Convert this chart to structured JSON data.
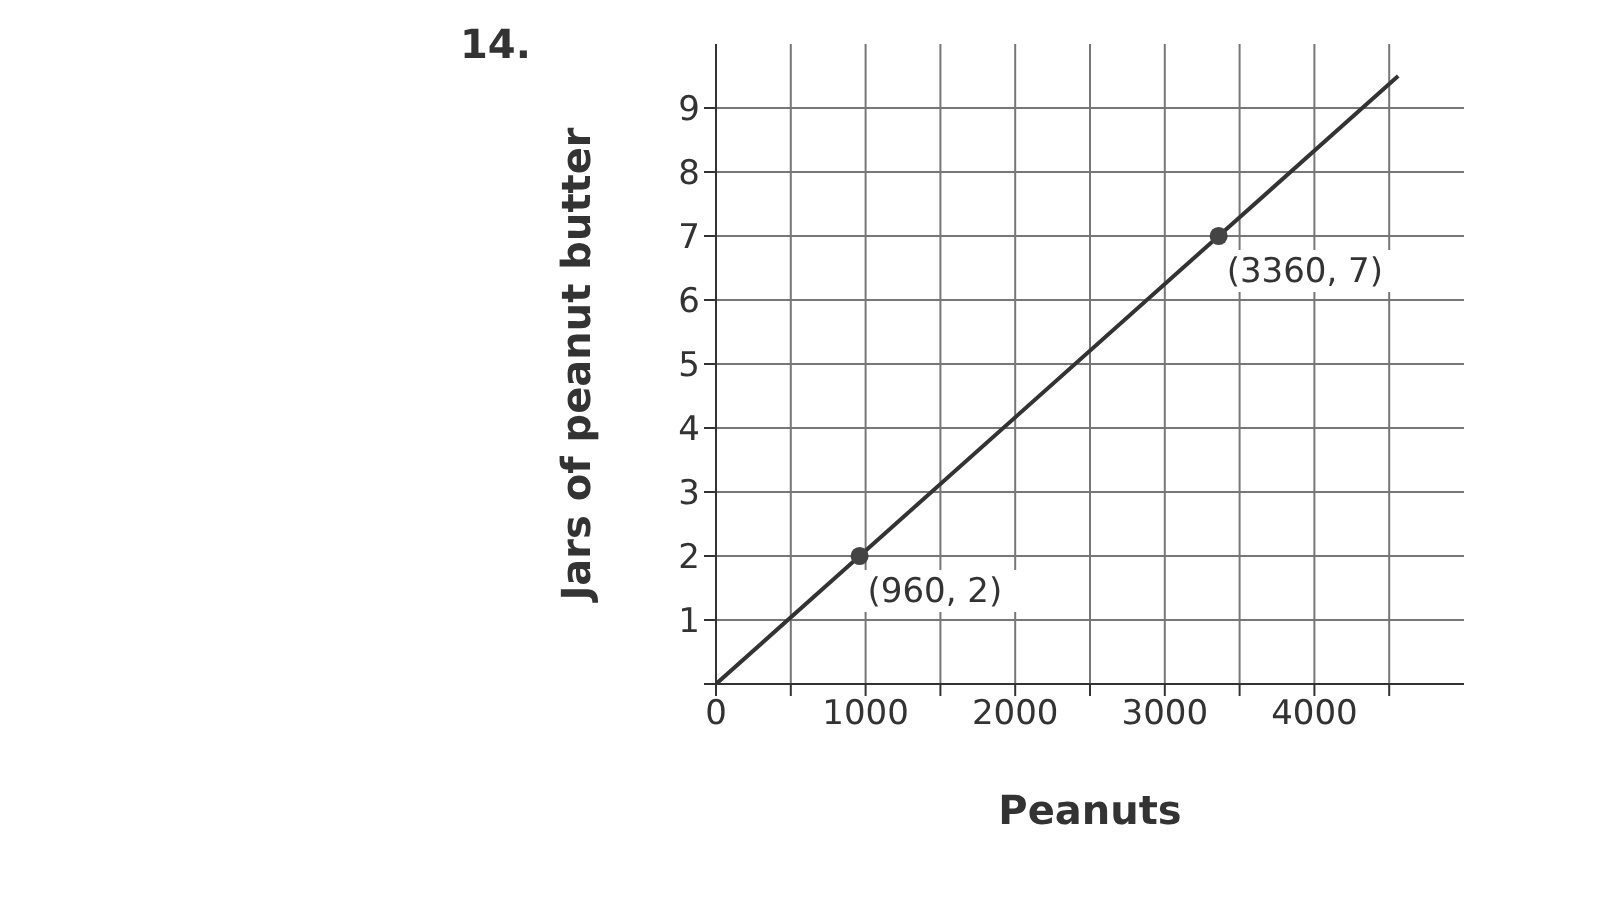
{
  "chart_data": {
    "type": "line",
    "title": "14.",
    "xlabel": "Peanuts",
    "ylabel": "Jars of peanut butter",
    "series": [
      {
        "type": "line",
        "color": "#333333",
        "x": [
          0,
          960,
          3360,
          4560
        ],
        "values": [
          0,
          2,
          7,
          9.5
        ],
        "marker": "none"
      },
      {
        "type": "scatter",
        "color": "#444444",
        "x": [
          960,
          3360
        ],
        "values": [
          2,
          7
        ],
        "marker": "circle"
      }
    ],
    "xlim": [
      0,
      5000
    ],
    "xticks": [
      0,
      {
        "value": 500,
        "label": null
      },
      1000,
      {
        "value": 1500,
        "label": null
      },
      2000,
      {
        "value": 2500,
        "label": null
      },
      3000,
      {
        "value": 3500,
        "label": null
      },
      4000,
      {
        "value": 4500,
        "label": null
      }
    ],
    "ylim": [
      0,
      10
    ],
    "yticks": [
      {
        "value": 0,
        "label": null
      },
      1,
      2,
      3,
      4,
      5,
      6,
      7,
      8,
      9
    ],
    "grid": true,
    "annotations": [
      {
        "text": "(960, 2)",
        "x": 960,
        "y": 2
      },
      {
        "text": "(3360, 7)",
        "x": 3360,
        "y": 7
      }
    ]
  }
}
